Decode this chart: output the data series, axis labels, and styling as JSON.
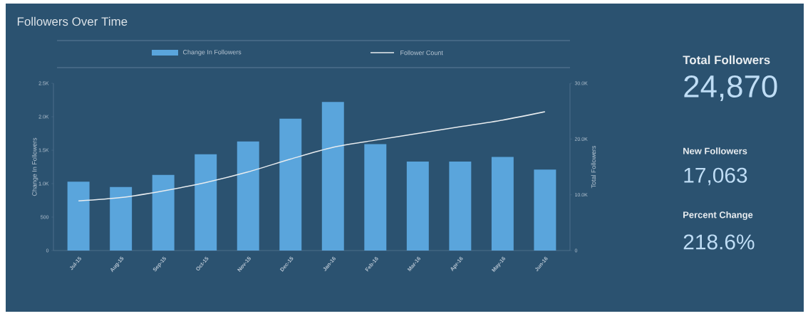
{
  "chart_data": [
    {
      "type": "bar",
      "title": "Followers Over Time",
      "ylabel": "Change In Followers",
      "y2label": "Total Followers",
      "categories": [
        "Jul-15",
        "Aug-15",
        "Sep-15",
        "Oct-15",
        "Nov-15",
        "Dec-15",
        "Jan-16",
        "Feb-16",
        "Mar-16",
        "Apr-16",
        "May-16",
        "Jun-16"
      ],
      "series": [
        {
          "name": "Change In Followers",
          "type": "bar",
          "color": "#5aa5dc",
          "values": [
            1030,
            950,
            1130,
            1440,
            1630,
            1970,
            2220,
            1590,
            1330,
            1330,
            1400,
            1210
          ]
        },
        {
          "name": "Follower Count",
          "type": "line",
          "axis": "y2",
          "color": "#e8ecef",
          "values": [
            8900,
            9500,
            10700,
            12200,
            14100,
            16400,
            18500,
            19800,
            21000,
            22200,
            23400,
            24900
          ]
        }
      ],
      "ylim": [
        0,
        2500
      ],
      "yticks": [
        0,
        500,
        {
          "value": 1000,
          "label": "1.0K"
        },
        {
          "value": 1500,
          "label": "1.5K"
        },
        {
          "value": 2000,
          "label": "2.0K"
        },
        {
          "value": 2500,
          "label": "2.5K"
        }
      ],
      "y2lim": [
        0,
        30000
      ],
      "y2ticks": [
        0,
        {
          "value": 10000,
          "label": "10.0K"
        },
        {
          "value": 20000,
          "label": "20.0K"
        },
        {
          "value": 30000,
          "label": "30.0K"
        }
      ],
      "legend": "top"
    },
    {
      "type": "other",
      "annotations": [
        "Total Followers",
        "24,870",
        "New Followers",
        "17,063",
        "Percent Change",
        "218.6%"
      ]
    }
  ]
}
